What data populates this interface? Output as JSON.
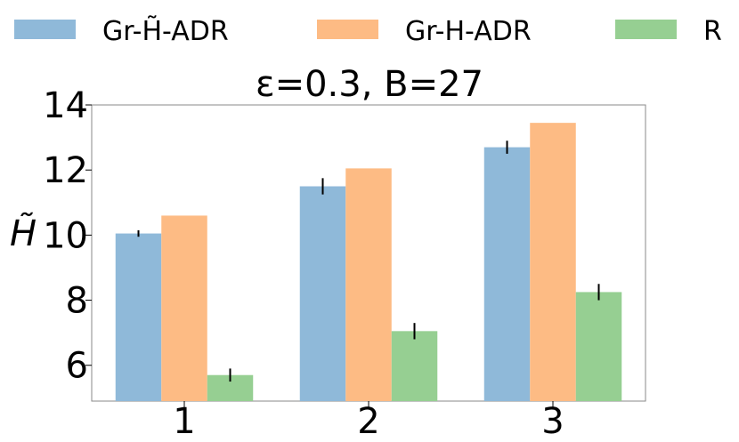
{
  "chart_data": {
    "type": "bar",
    "title": "ε=0.3, B=27",
    "xlabel": "",
    "ylabel": "H̃",
    "categories": [
      "1",
      "2",
      "3"
    ],
    "ylim": [
      4.9,
      14.0
    ],
    "yticks": [
      "6",
      "8",
      "10",
      "12",
      "14"
    ],
    "grid": false,
    "legend_position": "top",
    "series": [
      {
        "name": "Gr-H̃-ADR",
        "color": "#8fb9d9",
        "values": [
          10.05,
          11.5,
          12.7
        ],
        "error": [
          0.1,
          0.25,
          0.2
        ]
      },
      {
        "name": "Gr-H-ADR",
        "color": "#fdbb84",
        "values": [
          10.6,
          12.05,
          13.45
        ],
        "error": [
          0,
          0,
          0
        ]
      },
      {
        "name": "R",
        "color": "#96cf92",
        "values": [
          5.7,
          7.05,
          8.25
        ],
        "error": [
          0.2,
          0.25,
          0.25
        ]
      }
    ]
  }
}
